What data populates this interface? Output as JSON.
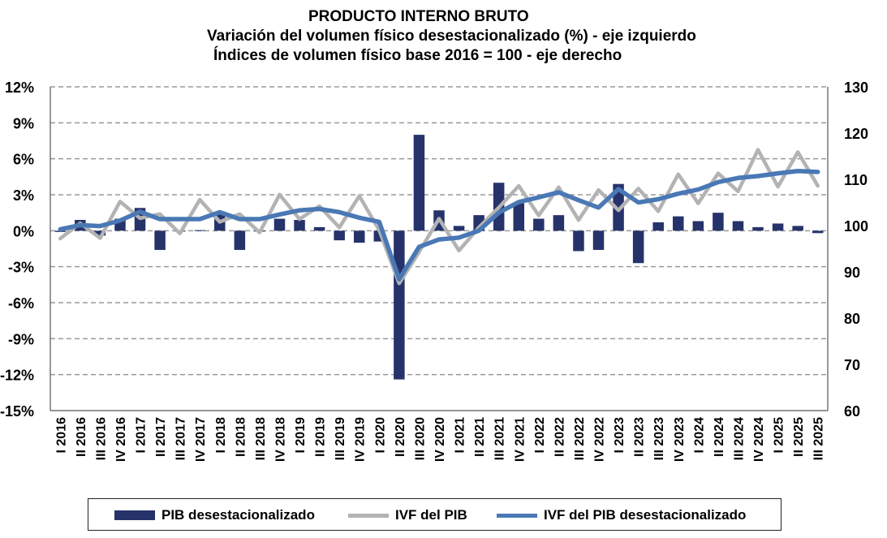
{
  "title": "PRODUCTO INTERNO BRUTO",
  "subtitle1": "Variación del volumen físico desestacionalizado (%) - eje izquierdo",
  "subtitle2": "Índices de volumen físico base 2016 = 100 - eje derecho",
  "colors": {
    "bars": "#26336b",
    "ivf": "#b3b3b3",
    "ivf_sa": "#4a78b5",
    "grid": "#9a9a9a"
  },
  "chart_data": {
    "type": "bar",
    "categories": [
      "I 2016",
      "II 2016",
      "III 2016",
      "IV 2016",
      "I 2017",
      "II 2017",
      "III 2017",
      "IV 2017",
      "I 2018",
      "II 2018",
      "III 2018",
      "IV 2018",
      "I 2019",
      "II 2019",
      "III 2019",
      "IV 2019",
      "I 2020",
      "II 2020",
      "III 2020",
      "IV 2020",
      "I 2021",
      "II 2021",
      "III 2021",
      "IV 2021",
      "I 2022",
      "II 2022",
      "III 2022",
      "IV 2022",
      "I 2023",
      "II 2023",
      "III 2023",
      "IV 2023",
      "I 2024",
      "II 2024",
      "III 2024",
      "IV 2024",
      "I 2025",
      "II 2025",
      "III 2025"
    ],
    "left_axis": {
      "ylim": [
        -15,
        12
      ],
      "ticks": [
        "-15%",
        "-12%",
        "-9%",
        "-6%",
        "-3%",
        "0%",
        "3%",
        "6%",
        "9%",
        "12%"
      ],
      "tick_values": [
        -15,
        -12,
        -9,
        -6,
        -3,
        0,
        3,
        6,
        9,
        12
      ]
    },
    "right_axis": {
      "ylim": [
        60,
        130
      ],
      "ticks": [
        "60",
        "70",
        "80",
        "90",
        "100",
        "110",
        "120",
        "130"
      ],
      "tick_values": [
        60,
        70,
        80,
        90,
        100,
        110,
        120,
        130
      ]
    },
    "grid": true,
    "legend_position": "bottom",
    "series": [
      {
        "name": "PIB desestacionalizado",
        "kind": "bar",
        "axis": "left",
        "values": [
          -0.1,
          0.9,
          -0.4,
          1.0,
          1.9,
          -1.6,
          0.0,
          0.05,
          1.4,
          -1.6,
          0.0,
          1.0,
          0.9,
          0.3,
          -0.8,
          -1.0,
          -0.9,
          -12.4,
          8.0,
          1.7,
          0.4,
          1.3,
          4.0,
          2.3,
          1.0,
          1.3,
          -1.7,
          -1.6,
          3.9,
          -2.7,
          0.7,
          1.2,
          0.8,
          1.5,
          0.8,
          0.3,
          0.6,
          0.4,
          -0.2
        ]
      },
      {
        "name": "IVF del PIB",
        "kind": "line",
        "axis": "right",
        "values": [
          97.2,
          100.5,
          97.3,
          105.2,
          101.6,
          102.5,
          98.3,
          105.6,
          100.8,
          102.5,
          98.5,
          106.7,
          101.4,
          104.2,
          99.6,
          106.4,
          99.0,
          87.5,
          94.3,
          101.5,
          94.6,
          99.6,
          103.9,
          108.6,
          102.2,
          108.3,
          101.2,
          107.7,
          103.3,
          108.0,
          103.1,
          111.1,
          104.8,
          111.3,
          107.4,
          116.4,
          108.4,
          115.9,
          108.6
        ]
      },
      {
        "name": "IVF del PIB desestacionalizado",
        "kind": "line",
        "axis": "right",
        "values": [
          99.2,
          100.1,
          99.9,
          101.1,
          103.0,
          101.4,
          101.4,
          101.4,
          102.9,
          101.4,
          101.4,
          102.4,
          103.3,
          103.6,
          102.9,
          101.7,
          100.8,
          88.4,
          95.4,
          97.0,
          97.4,
          98.9,
          102.8,
          105.1,
          106.1,
          107.2,
          105.5,
          103.9,
          107.9,
          105.0,
          105.7,
          106.9,
          107.8,
          109.4,
          110.3,
          110.7,
          111.3,
          111.8,
          111.6
        ]
      }
    ]
  },
  "legend": {
    "bars": "PIB desestacionalizado",
    "ivf": "IVF del PIB",
    "ivf_sa": "IVF del PIB desestacionalizado"
  }
}
